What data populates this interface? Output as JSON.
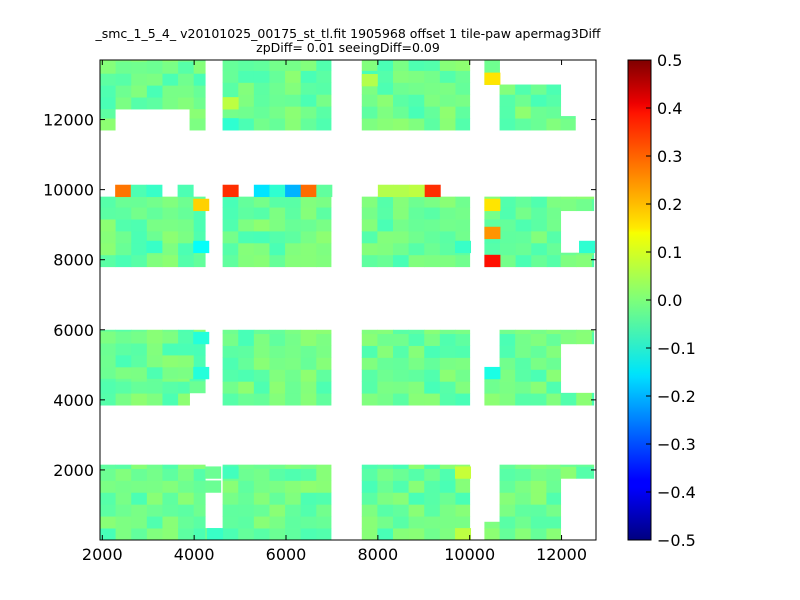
{
  "chart_data": {
    "type": "heatmap",
    "title_line1": "_smc_1_5_4_ v20101025_00175_st_tl.fit 1905968 offset 1 tile-paw apermag3Diff",
    "title_line2": "zpDiff= 0.01 seeingDiff=0.09",
    "xlabel": "",
    "ylabel": "",
    "xlim": [
      1950,
      12750
    ],
    "ylim": [
      0,
      13700
    ],
    "x_ticks": [
      "2000",
      "4000",
      "6000",
      "8000",
      "10000",
      "12000"
    ],
    "y_ticks": [
      "2000",
      "4000",
      "6000",
      "8000",
      "10000",
      "12000"
    ],
    "colorbar": {
      "colormap": "jet",
      "range": [
        -0.5,
        0.5
      ],
      "ticks": [
        "0.5",
        "0.4",
        "0.3",
        "0.2",
        "0.1",
        "0.0",
        "−0.1",
        "−0.2",
        "−0.3",
        "−0.4",
        "−0.5"
      ]
    },
    "cell_size": [
      340,
      340
    ],
    "base_value": -0.02,
    "detector_regions": [
      {
        "x": [
          1950,
          4240
        ],
        "y": [
          0,
          2150
        ]
      },
      {
        "x": [
          4620,
          6980
        ],
        "y": [
          0,
          2150
        ]
      },
      {
        "x": [
          7650,
          10000
        ],
        "y": [
          0,
          2150
        ]
      },
      {
        "x": [
          10320,
          10650
        ],
        "y": [
          0,
          520
        ]
      },
      {
        "x": [
          10650,
          11980
        ],
        "y": [
          0,
          2150
        ]
      },
      {
        "x": [
          11980,
          12700
        ],
        "y": [
          1760,
          2150
        ]
      },
      {
        "x": [
          1950,
          4240
        ],
        "y": [
          4600,
          6000
        ]
      },
      {
        "x": [
          1950,
          3900
        ],
        "y": [
          3850,
          4600
        ]
      },
      {
        "x": [
          3900,
          4240
        ],
        "y": [
          4200,
          4600
        ]
      },
      {
        "x": [
          4620,
          6980
        ],
        "y": [
          3850,
          6000
        ]
      },
      {
        "x": [
          7650,
          10000
        ],
        "y": [
          3850,
          6000
        ]
      },
      {
        "x": [
          10320,
          10650
        ],
        "y": [
          3850,
          4600
        ]
      },
      {
        "x": [
          10650,
          11980
        ],
        "y": [
          3850,
          6000
        ]
      },
      {
        "x": [
          11980,
          12700
        ],
        "y": [
          5600,
          6000
        ]
      },
      {
        "x": [
          11980,
          12700
        ],
        "y": [
          3850,
          4200
        ]
      },
      {
        "x": [
          1950,
          4240
        ],
        "y": [
          7800,
          9800
        ]
      },
      {
        "x": [
          4620,
          6980
        ],
        "y": [
          7800,
          9800
        ]
      },
      {
        "x": [
          7650,
          10000
        ],
        "y": [
          7800,
          9800
        ]
      },
      {
        "x": [
          10320,
          11980
        ],
        "y": [
          7800,
          9800
        ]
      },
      {
        "x": [
          11980,
          12700
        ],
        "y": [
          7800,
          8200
        ]
      },
      {
        "x": [
          11980,
          12700
        ],
        "y": [
          9400,
          9800
        ]
      },
      {
        "x": [
          1950,
          4240
        ],
        "y": [
          12300,
          13700
        ]
      },
      {
        "x": [
          1950,
          2280
        ],
        "y": [
          11700,
          12300
        ]
      },
      {
        "x": [
          3900,
          4240
        ],
        "y": [
          11700,
          12300
        ]
      },
      {
        "x": [
          4620,
          6980
        ],
        "y": [
          11700,
          13700
        ]
      },
      {
        "x": [
          7650,
          10000
        ],
        "y": [
          11700,
          13700
        ]
      },
      {
        "x": [
          10320,
          10650
        ],
        "y": [
          13000,
          13700
        ]
      },
      {
        "x": [
          10650,
          11980
        ],
        "y": [
          11700,
          13000
        ]
      },
      {
        "x": [
          11980,
          12300
        ],
        "y": [
          11700,
          12100
        ]
      }
    ],
    "gap_cells": [
      {
        "x": 4240,
        "y": 0,
        "v": -0.02
      },
      {
        "x": 4240,
        "y": 1360,
        "v": -0.02
      },
      {
        "x": 4240,
        "y": 1760,
        "v": -0.02
      }
    ],
    "highlight_cells": [
      {
        "x": 2280,
        "y": 9800,
        "v": 0.26
      },
      {
        "x": 2620,
        "y": 9800,
        "v": -0.05
      },
      {
        "x": 2960,
        "y": 9800,
        "v": -0.07
      },
      {
        "x": 3640,
        "y": 9800,
        "v": -0.05
      },
      {
        "x": 3980,
        "y": 9400,
        "v": 0.17
      },
      {
        "x": 4620,
        "y": 9800,
        "v": 0.33
      },
      {
        "x": 5300,
        "y": 9800,
        "v": -0.15
      },
      {
        "x": 5640,
        "y": 9800,
        "v": -0.08
      },
      {
        "x": 5980,
        "y": 9800,
        "v": -0.2
      },
      {
        "x": 6320,
        "y": 9800,
        "v": 0.27
      },
      {
        "x": 6660,
        "y": 9800,
        "v": -0.03
      },
      {
        "x": 8000,
        "y": 9800,
        "v": 0.05
      },
      {
        "x": 8340,
        "y": 9800,
        "v": 0.05
      },
      {
        "x": 8680,
        "y": 9800,
        "v": 0.06
      },
      {
        "x": 9020,
        "y": 9800,
        "v": 0.33
      },
      {
        "x": 10320,
        "y": 9400,
        "v": 0.15
      },
      {
        "x": 10320,
        "y": 8600,
        "v": 0.23
      },
      {
        "x": 10320,
        "y": 7800,
        "v": 0.36
      },
      {
        "x": 3980,
        "y": 8200,
        "v": -0.12
      },
      {
        "x": 2960,
        "y": 8200,
        "v": -0.07
      },
      {
        "x": 10320,
        "y": 4600,
        "v": -0.1
      },
      {
        "x": 3980,
        "y": 4600,
        "v": -0.09
      },
      {
        "x": 3980,
        "y": 5600,
        "v": -0.09
      },
      {
        "x": 10320,
        "y": 13000,
        "v": 0.15
      },
      {
        "x": 4620,
        "y": 12300,
        "v": 0.06
      },
      {
        "x": 4620,
        "y": 11700,
        "v": -0.08
      },
      {
        "x": 9680,
        "y": 1760,
        "v": 0.07
      },
      {
        "x": 9680,
        "y": 0,
        "v": 0.06
      },
      {
        "x": 4280,
        "y": 0,
        "v": -0.07
      },
      {
        "x": 7650,
        "y": 12960,
        "v": 0.05
      },
      {
        "x": 9680,
        "y": 8200,
        "v": -0.07
      },
      {
        "x": 12380,
        "y": 8200,
        "v": -0.08
      },
      {
        "x": 4620,
        "y": 1760,
        "v": -0.06
      }
    ]
  }
}
